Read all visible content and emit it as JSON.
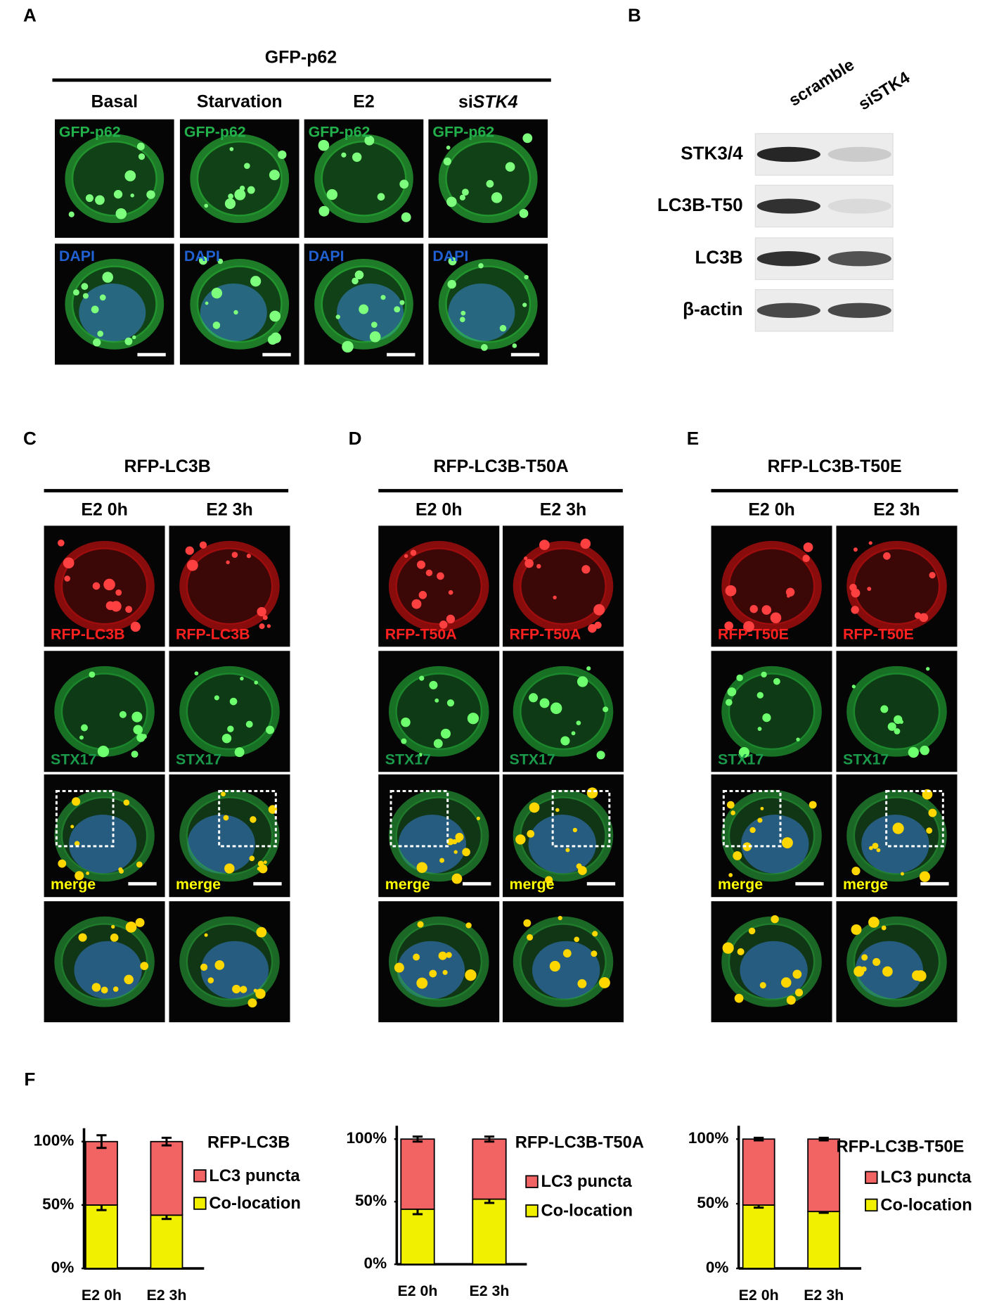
{
  "figure": {
    "panel_a": {
      "letter": "A",
      "title": "GFP-p62",
      "columns": [
        "Basal",
        "Starvation",
        "E2",
        {
          "prefix": "si",
          "italic": "STK4"
        }
      ],
      "channels": [
        "GFP-p62",
        "DAPI"
      ]
    },
    "panel_b": {
      "letter": "B",
      "lanes": [
        "scramble",
        "siSTK4"
      ],
      "rows": [
        "STK3/4",
        "LC3B-T50",
        "LC3B",
        "β-actin"
      ]
    },
    "panels_cde": [
      {
        "letter": "C",
        "title": "RFP-LC3B",
        "columns": [
          "E2 0h",
          "E2 3h"
        ],
        "channels": [
          "RFP-LC3B",
          "STX17",
          "merge"
        ]
      },
      {
        "letter": "D",
        "title": "RFP-LC3B-T50A",
        "columns": [
          "E2 0h",
          "E2 3h"
        ],
        "channels": [
          "RFP-T50A",
          "STX17",
          "merge"
        ]
      },
      {
        "letter": "E",
        "title": "RFP-LC3B-T50E",
        "columns": [
          "E2 0h",
          "E2 3h"
        ],
        "channels": [
          "RFP-T50E",
          "STX17",
          "merge"
        ]
      }
    ],
    "panel_f_letter": "F"
  },
  "chart_data": [
    {
      "type": "bar",
      "stacked": true,
      "title": "RFP-LC3B",
      "categories": [
        "E2 0h",
        "E2 3h"
      ],
      "series": [
        {
          "name": "LC3 puncta",
          "color": "#f26464",
          "values": [
            50,
            58
          ],
          "errors": [
            5,
            3
          ]
        },
        {
          "name": "Co-location",
          "color": "#f0f000",
          "values": [
            50,
            42
          ],
          "errors": [
            4,
            3
          ]
        }
      ],
      "ylim": [
        0,
        100
      ],
      "yticks": [
        {
          "value": 0,
          "label": "0%"
        },
        {
          "value": 50,
          "label": "50%"
        },
        {
          "value": 100,
          "label": "100%"
        }
      ],
      "legend": "right"
    },
    {
      "type": "bar",
      "stacked": true,
      "title": "RFP-LC3B-T50A",
      "categories": [
        "E2 0h",
        "E2 3h"
      ],
      "series": [
        {
          "name": "LC3 puncta",
          "color": "#f26464",
          "values": [
            56,
            48
          ],
          "errors": [
            2,
            2
          ]
        },
        {
          "name": "Co-location",
          "color": "#f0f000",
          "values": [
            44,
            52
          ],
          "errors": [
            4,
            3
          ]
        }
      ],
      "ylim": [
        0,
        100
      ],
      "yticks": [
        {
          "value": 0,
          "label": "0%"
        },
        {
          "value": 50,
          "label": "50%"
        },
        {
          "value": 100,
          "label": "100%"
        }
      ],
      "legend": "right"
    },
    {
      "type": "bar",
      "stacked": true,
      "title": "RFP-LC3B-T50E",
      "categories": [
        "E2 0h",
        "E2 3h"
      ],
      "series": [
        {
          "name": "LC3 puncta",
          "color": "#f26464",
          "values": [
            51,
            56
          ],
          "errors": [
            1,
            1
          ]
        },
        {
          "name": "Co-location",
          "color": "#f0f000",
          "values": [
            49,
            44
          ],
          "errors": [
            2,
            1
          ]
        }
      ],
      "ylim": [
        0,
        100
      ],
      "yticks": [
        {
          "value": 0,
          "label": "0%"
        },
        {
          "value": 50,
          "label": "50%"
        },
        {
          "value": 100,
          "label": "100%"
        }
      ],
      "legend": "right"
    }
  ]
}
